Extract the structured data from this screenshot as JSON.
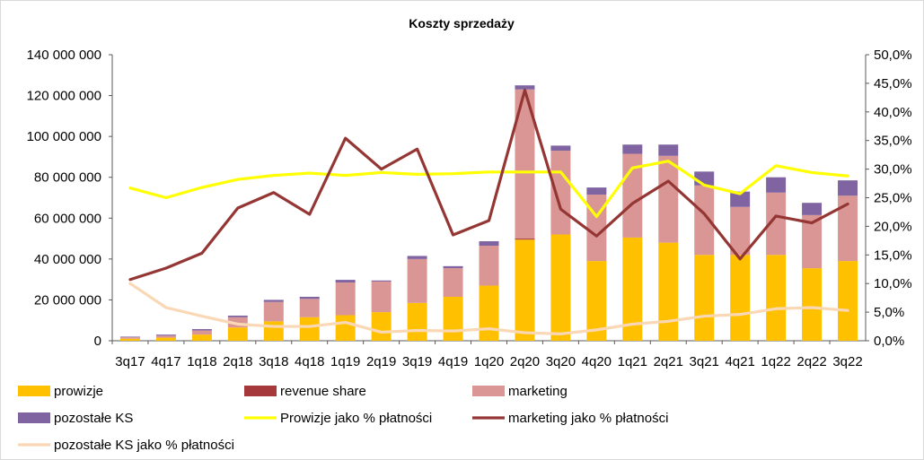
{
  "chart_data": {
    "type": "bar",
    "title": "Koszty sprzedaży",
    "categories": [
      "3q17",
      "4q17",
      "1q18",
      "2q18",
      "3q18",
      "4q18",
      "1q19",
      "2q19",
      "3q19",
      "4q19",
      "1q20",
      "2q20",
      "3q20",
      "4q20",
      "1q21",
      "2q21",
      "3q21",
      "4q21",
      "1q22",
      "2q22",
      "3q22"
    ],
    "left_axis": {
      "ylim": [
        0,
        140000000
      ],
      "ticks": [
        0,
        20000000,
        40000000,
        60000000,
        80000000,
        100000000,
        120000000,
        140000000
      ],
      "tick_labels": [
        "0",
        "20 000 000",
        "40 000 000",
        "60 000 000",
        "80 000 000",
        "100 000 000",
        "120 000 000",
        "140 000 000"
      ]
    },
    "right_axis": {
      "ylim": [
        0,
        0.5
      ],
      "ticks": [
        0,
        0.05,
        0.1,
        0.15,
        0.2,
        0.25,
        0.3,
        0.35,
        0.4,
        0.45,
        0.5
      ],
      "tick_labels": [
        "0,0%",
        "5,0%",
        "10,0%",
        "15,0%",
        "20,0%",
        "25,0%",
        "30,0%",
        "35,0%",
        "40,0%",
        "45,0%",
        "50,0%"
      ]
    },
    "grid": false,
    "legend_position": "bottom",
    "stacked_series": [
      {
        "name": "prowizje",
        "color": "#FFC000",
        "values": [
          1000000,
          1500000,
          3000000,
          6500000,
          9500000,
          11500000,
          12500000,
          14000000,
          18500000,
          21500000,
          27000000,
          49500000,
          52000000,
          39000000,
          50500000,
          48000000,
          42000000,
          42000000,
          42000000,
          35500000,
          39000000
        ]
      },
      {
        "name": "revenue share",
        "color": "#A5383B",
        "values": [
          0,
          0,
          0,
          0,
          0,
          0,
          0,
          0,
          0,
          0,
          0,
          500000,
          0,
          0,
          0,
          0,
          0,
          0,
          0,
          0,
          0
        ]
      },
      {
        "name": "marketing",
        "color": "#DA9694",
        "values": [
          700000,
          1000000,
          2000000,
          5000000,
          9500000,
          9000000,
          16000000,
          15000000,
          21500000,
          14000000,
          19500000,
          73000000,
          41000000,
          32500000,
          41000000,
          42500000,
          34000000,
          23500000,
          30500000,
          26000000,
          32000000
        ]
      },
      {
        "name": "pozostałe KS",
        "color": "#8064A2",
        "values": [
          300000,
          500000,
          700000,
          800000,
          1000000,
          1000000,
          1300000,
          500000,
          1500000,
          1000000,
          2200000,
          2000000,
          2500000,
          3500000,
          4500000,
          5500000,
          6800000,
          7500000,
          7500000,
          6000000,
          7500000
        ]
      }
    ],
    "line_series": [
      {
        "name": "Prowizje jako % płatności",
        "color": "#FFFF00",
        "axis": "right",
        "values": [
          0.267,
          0.25,
          0.268,
          0.282,
          0.289,
          0.293,
          0.289,
          0.294,
          0.291,
          0.292,
          0.295,
          0.295,
          0.295,
          0.217,
          0.302,
          0.314,
          0.272,
          0.257,
          0.306,
          0.294,
          0.288
        ]
      },
      {
        "name": "marketing jako % płatności",
        "color": "#943634",
        "axis": "right",
        "values": [
          0.107,
          0.127,
          0.153,
          0.232,
          0.259,
          0.221,
          0.354,
          0.3,
          0.335,
          0.185,
          0.21,
          0.438,
          0.23,
          0.183,
          0.24,
          0.279,
          0.222,
          0.143,
          0.218,
          0.206,
          0.239
        ]
      },
      {
        "name": "pozostałe KS jako % płatności",
        "color": "#FAD7B5",
        "axis": "right",
        "values": [
          0.1,
          0.058,
          0.043,
          0.029,
          0.025,
          0.025,
          0.032,
          0.015,
          0.018,
          0.017,
          0.021,
          0.014,
          0.012,
          0.019,
          0.029,
          0.034,
          0.043,
          0.046,
          0.056,
          0.058,
          0.053
        ]
      }
    ],
    "legend": [
      {
        "name": "prowizje",
        "kind": "box",
        "color": "#FFC000"
      },
      {
        "name": "revenue share",
        "kind": "box",
        "color": "#A5383B"
      },
      {
        "name": "marketing",
        "kind": "box",
        "color": "#DA9694"
      },
      {
        "name": "pozostałe KS",
        "kind": "box",
        "color": "#8064A2"
      },
      {
        "name": "Prowizje jako % płatności",
        "kind": "line",
        "color": "#FFFF00"
      },
      {
        "name": "marketing jako % płatności",
        "kind": "line",
        "color": "#943634"
      },
      {
        "name": "pozostałe KS jako % płatności",
        "kind": "line",
        "color": "#FAD7B5"
      }
    ]
  }
}
